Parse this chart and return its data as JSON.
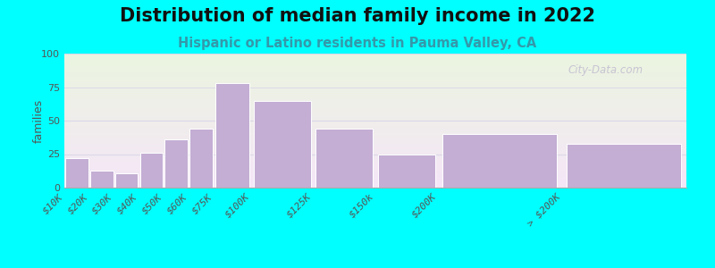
{
  "title": "Distribution of median family income in 2022",
  "subtitle": "Hispanic or Latino residents in Pauma Valley, CA",
  "ylabel": "families",
  "background_color": "#00FFFF",
  "bar_color": "#c4aed4",
  "bar_edge_color": "#ffffff",
  "categories": [
    "$10K",
    "$20K",
    "$30K",
    "$40K",
    "$50K",
    "$60K",
    "$75K",
    "$100K",
    "$125K",
    "$150k",
    "$200K",
    "> $200K"
  ],
  "values": [
    22,
    13,
    11,
    26,
    36,
    44,
    78,
    65,
    44,
    25,
    40,
    33
  ],
  "bar_lefts": [
    0,
    10,
    20,
    30,
    40,
    50,
    60,
    75,
    100,
    125,
    150,
    200
  ],
  "bar_widths": [
    10,
    10,
    10,
    10,
    10,
    10,
    15,
    25,
    25,
    25,
    50,
    50
  ],
  "xlim": [
    0,
    250
  ],
  "ylim": [
    0,
    100
  ],
  "yticks": [
    0,
    25,
    50,
    75,
    100
  ],
  "watermark": "City-Data.com",
  "title_fontsize": 15,
  "subtitle_fontsize": 10.5,
  "ylabel_fontsize": 9,
  "tick_fontsize": 8
}
